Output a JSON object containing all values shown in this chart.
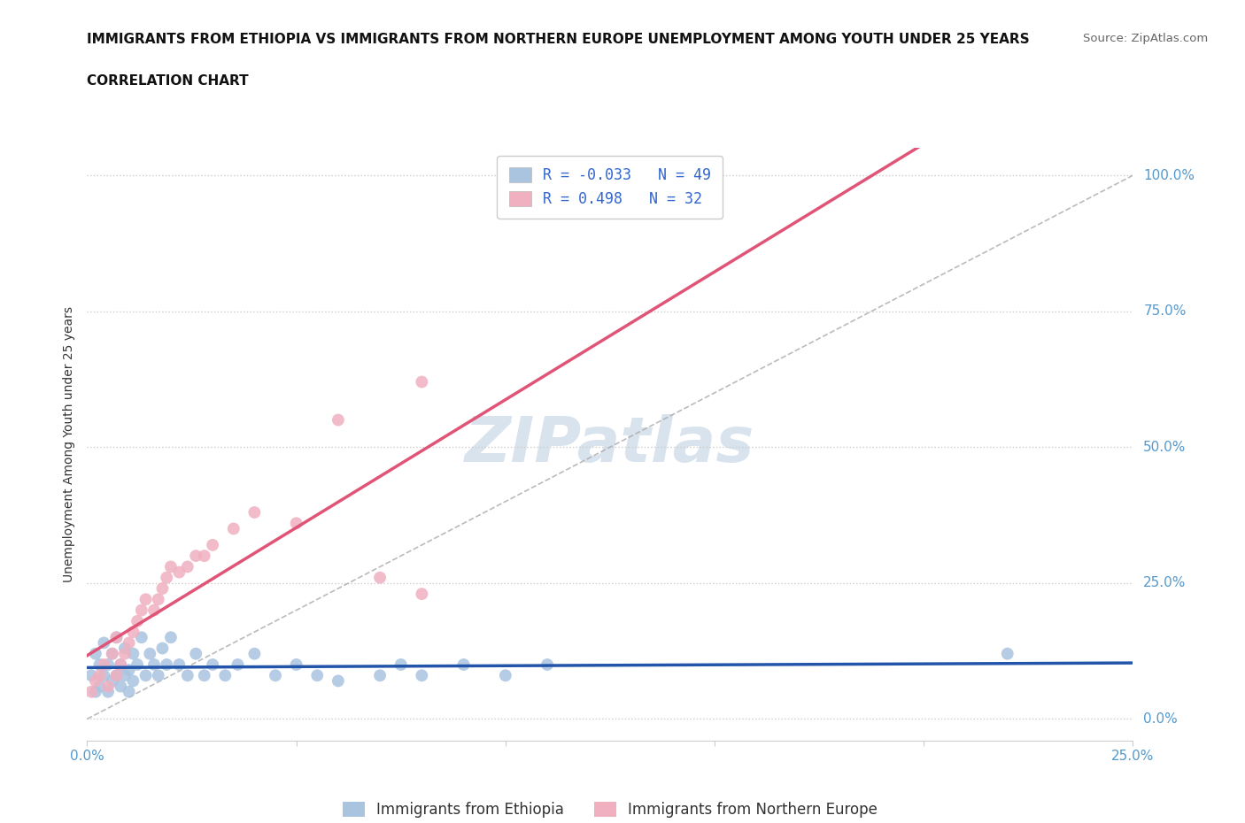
{
  "title_line1": "IMMIGRANTS FROM ETHIOPIA VS IMMIGRANTS FROM NORTHERN EUROPE UNEMPLOYMENT AMONG YOUTH UNDER 25 YEARS",
  "title_line2": "CORRELATION CHART",
  "source": "Source: ZipAtlas.com",
  "ylabel": "Unemployment Among Youth under 25 years",
  "xlim": [
    0.0,
    0.25
  ],
  "ylim": [
    -0.04,
    1.05
  ],
  "background_color": "#ffffff",
  "grid_color": "#cccccc",
  "watermark_color": "#c8d8e8",
  "R_ethiopia": -0.033,
  "N_ethiopia": 49,
  "R_northern_europe": 0.498,
  "N_northern_europe": 32,
  "ethiopia_color": "#aac4e0",
  "ethiopia_line_color": "#2255aa",
  "northern_europe_color": "#f0b0c0",
  "northern_europe_line_color": "#e05577",
  "ethiopia_scatter_x": [
    0.001,
    0.002,
    0.002,
    0.003,
    0.003,
    0.004,
    0.004,
    0.005,
    0.005,
    0.006,
    0.006,
    0.007,
    0.007,
    0.008,
    0.008,
    0.009,
    0.009,
    0.01,
    0.01,
    0.011,
    0.011,
    0.012,
    0.013,
    0.014,
    0.015,
    0.016,
    0.017,
    0.018,
    0.019,
    0.02,
    0.022,
    0.024,
    0.026,
    0.028,
    0.03,
    0.033,
    0.036,
    0.04,
    0.045,
    0.05,
    0.055,
    0.06,
    0.07,
    0.075,
    0.08,
    0.09,
    0.1,
    0.11,
    0.22
  ],
  "ethiopia_scatter_y": [
    0.08,
    0.05,
    0.12,
    0.06,
    0.1,
    0.08,
    0.14,
    0.05,
    0.1,
    0.07,
    0.12,
    0.08,
    0.15,
    0.06,
    0.1,
    0.08,
    0.13,
    0.05,
    0.09,
    0.07,
    0.12,
    0.1,
    0.15,
    0.08,
    0.12,
    0.1,
    0.08,
    0.13,
    0.1,
    0.15,
    0.1,
    0.08,
    0.12,
    0.08,
    0.1,
    0.08,
    0.1,
    0.12,
    0.08,
    0.1,
    0.08,
    0.07,
    0.08,
    0.1,
    0.08,
    0.1,
    0.08,
    0.1,
    0.12
  ],
  "northern_europe_scatter_x": [
    0.001,
    0.002,
    0.003,
    0.004,
    0.005,
    0.006,
    0.007,
    0.007,
    0.008,
    0.009,
    0.01,
    0.011,
    0.012,
    0.013,
    0.014,
    0.016,
    0.017,
    0.018,
    0.019,
    0.02,
    0.022,
    0.024,
    0.026,
    0.028,
    0.03,
    0.035,
    0.04,
    0.05,
    0.06,
    0.07,
    0.08,
    0.08
  ],
  "northern_europe_scatter_y": [
    0.05,
    0.07,
    0.08,
    0.1,
    0.06,
    0.12,
    0.08,
    0.15,
    0.1,
    0.12,
    0.14,
    0.16,
    0.18,
    0.2,
    0.22,
    0.2,
    0.22,
    0.24,
    0.26,
    0.28,
    0.27,
    0.28,
    0.3,
    0.3,
    0.32,
    0.35,
    0.38,
    0.36,
    0.55,
    0.26,
    0.23,
    0.62
  ]
}
